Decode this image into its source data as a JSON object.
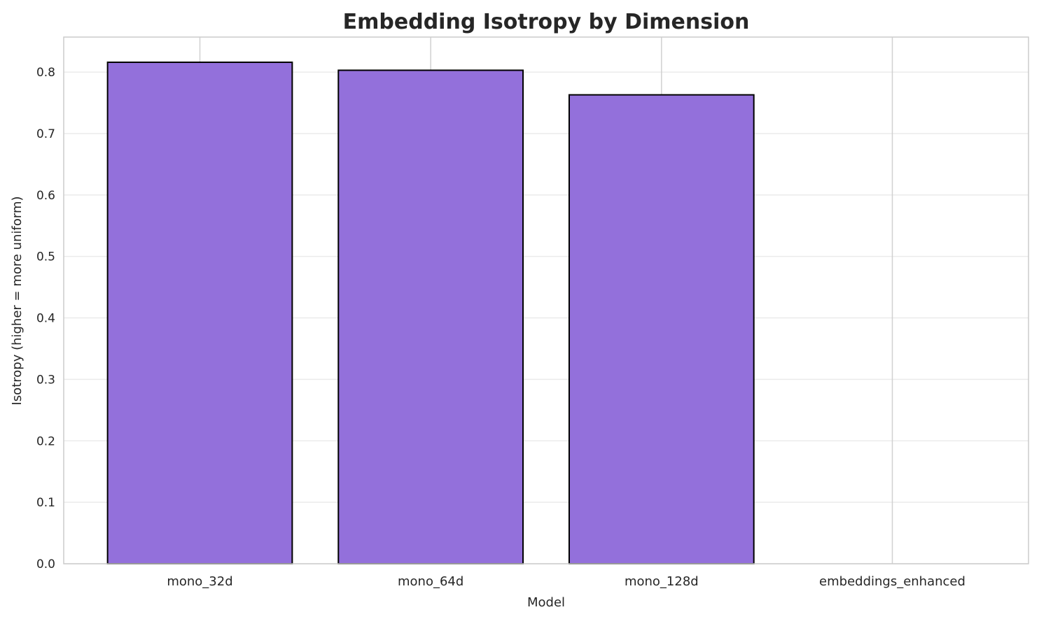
{
  "chart_data": {
    "type": "bar",
    "title": "Embedding Isotropy by Dimension",
    "xlabel": "Model",
    "ylabel": "Isotropy (higher = more uniform)",
    "categories": [
      "mono_32d",
      "mono_64d",
      "mono_128d",
      "embeddings_enhanced"
    ],
    "values": [
      0.816,
      0.803,
      0.763,
      0.0
    ],
    "ylim": [
      0,
      0.857
    ],
    "yticks": [
      "0.0",
      "0.1",
      "0.2",
      "0.3",
      "0.4",
      "0.5",
      "0.6",
      "0.7",
      "0.8"
    ],
    "grid": true,
    "bar_color": "#9370db",
    "edge_color": "#000000"
  }
}
